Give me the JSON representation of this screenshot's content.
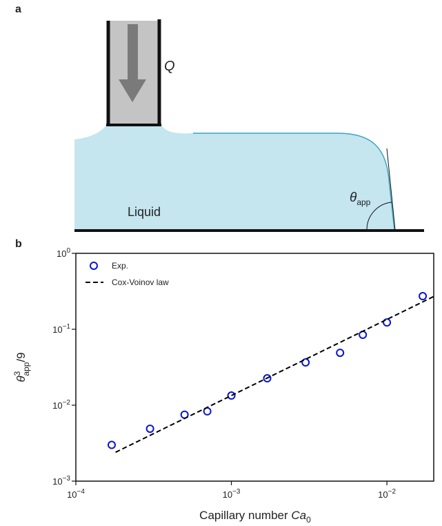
{
  "panel_a": {
    "label": "a",
    "flow_label": "Q",
    "liquid_label": "Liquid",
    "angle_symbol": "θ",
    "angle_subscript": "app"
  },
  "chart_data": {
    "panel_label": "b",
    "type": "scatter",
    "xlabel": [
      "Capillary number ",
      "Ca",
      "0"
    ],
    "ylabel": [
      "θ",
      "3",
      "app",
      "/9"
    ],
    "xlog": true,
    "ylog": true,
    "xlim": [
      0.0001,
      0.02
    ],
    "ylim": [
      0.001,
      1
    ],
    "xticks": [
      {
        "value": 0.0001,
        "label": [
          "10",
          "−4"
        ]
      },
      {
        "value": 0.001,
        "label": [
          "10",
          "−3"
        ]
      },
      {
        "value": 0.01,
        "label": [
          "10",
          "−2"
        ]
      }
    ],
    "yticks": [
      {
        "value": 0.001,
        "label": [
          "10",
          "−3"
        ]
      },
      {
        "value": 0.01,
        "label": [
          "10",
          "−2"
        ]
      },
      {
        "value": 0.1,
        "label": [
          "10",
          "−1"
        ]
      },
      {
        "value": 1,
        "label": [
          "10",
          "0"
        ]
      }
    ],
    "legend": "upper left",
    "series": [
      {
        "name": "Exp.",
        "type": "scatter",
        "color": "#0a14d2",
        "x": [
          0.00017,
          0.0003,
          0.0005,
          0.0007,
          0.001,
          0.0017,
          0.003,
          0.005,
          0.007,
          0.01,
          0.017
        ],
        "values": [
          0.003,
          0.0049,
          0.0075,
          0.0083,
          0.0134,
          0.0226,
          0.0366,
          0.049,
          0.0846,
          0.123,
          0.273
        ]
      },
      {
        "name": "Cox-Voinov law",
        "type": "line",
        "color": "#000000",
        "dash": true,
        "x": [
          0.00018,
          0.02
        ],
        "values": [
          0.0024,
          0.27
        ]
      }
    ]
  }
}
